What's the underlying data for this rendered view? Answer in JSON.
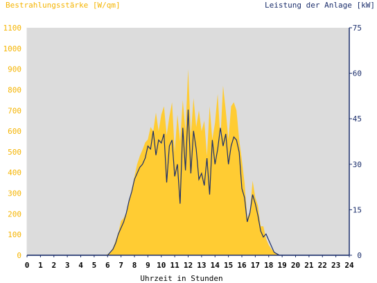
{
  "chart_data": {
    "type": "area",
    "title_left": "Bestrahlungsstärke [W/qm]",
    "title_right": "Leistung der Anlage [kW]",
    "xlabel": "Uhrzeit in Stunden",
    "grid": false,
    "x_ticks": [
      "0",
      "1",
      "2",
      "3",
      "4",
      "5",
      "6",
      "7",
      "8",
      "9",
      "10",
      "11",
      "12",
      "13",
      "14",
      "15",
      "16",
      "17",
      "18",
      "19",
      "20",
      "21",
      "22",
      "23",
      "24"
    ],
    "y_left_ticks": [
      "0",
      "100",
      "200",
      "300",
      "400",
      "500",
      "600",
      "700",
      "800",
      "900",
      "1000",
      "1100"
    ],
    "y_right_ticks": [
      "0",
      "15",
      "30",
      "45",
      "60",
      "75"
    ],
    "x_range": [
      0,
      24
    ],
    "y_left_range": [
      0,
      1100
    ],
    "y_right_range": [
      0,
      75
    ],
    "colors": {
      "plot_background": "#dcdcdc",
      "irradiance_fill": "#ffcc33",
      "power_line": "#1a2d6b",
      "left_axis_text": "#f5b400",
      "right_axis": "#1a2d6b"
    },
    "series": [
      {
        "axis": "left",
        "kind": "area",
        "x": [
          0,
          5.8,
          6.0,
          6.2,
          6.4,
          6.6,
          6.8,
          7.0,
          7.2,
          7.4,
          7.6,
          7.8,
          8.0,
          8.2,
          8.4,
          8.6,
          8.8,
          9.0,
          9.2,
          9.4,
          9.6,
          9.8,
          10.0,
          10.2,
          10.4,
          10.6,
          10.8,
          11.0,
          11.2,
          11.4,
          11.6,
          11.8,
          12.0,
          12.2,
          12.4,
          12.6,
          12.8,
          13.0,
          13.2,
          13.4,
          13.6,
          13.8,
          14.0,
          14.2,
          14.4,
          14.6,
          14.8,
          15.0,
          15.2,
          15.4,
          15.6,
          15.8,
          16.0,
          16.2,
          16.4,
          16.6,
          16.8,
          17.0,
          17.2,
          17.4,
          17.6,
          17.8,
          18.0,
          18.2,
          18.4,
          18.6,
          18.8,
          19.0,
          24
        ],
        "y": [
          0,
          0,
          5,
          15,
          35,
          70,
          110,
          165,
          180,
          205,
          260,
          320,
          380,
          440,
          480,
          510,
          545,
          560,
          620,
          600,
          690,
          600,
          680,
          720,
          580,
          670,
          740,
          500,
          680,
          550,
          750,
          600,
          900,
          580,
          760,
          620,
          700,
          600,
          650,
          480,
          720,
          560,
          640,
          780,
          560,
          820,
          700,
          560,
          720,
          740,
          700,
          560,
          460,
          350,
          180,
          210,
          360,
          280,
          240,
          140,
          140,
          80,
          50,
          30,
          15,
          5,
          0,
          0,
          0
        ]
      },
      {
        "axis": "right",
        "kind": "line",
        "x": [
          0,
          6.0,
          6.2,
          6.4,
          6.6,
          6.8,
          7.0,
          7.2,
          7.4,
          7.6,
          7.8,
          8.0,
          8.2,
          8.4,
          8.6,
          8.8,
          9.0,
          9.2,
          9.4,
          9.6,
          9.8,
          10.0,
          10.2,
          10.4,
          10.6,
          10.8,
          11.0,
          11.2,
          11.4,
          11.6,
          11.8,
          12.0,
          12.2,
          12.4,
          12.6,
          12.8,
          13.0,
          13.2,
          13.4,
          13.6,
          13.8,
          14.0,
          14.2,
          14.4,
          14.6,
          14.8,
          15.0,
          15.2,
          15.4,
          15.6,
          15.8,
          16.0,
          16.2,
          16.4,
          16.6,
          16.8,
          17.0,
          17.2,
          17.4,
          17.6,
          17.8,
          18.0,
          18.2,
          18.4,
          18.6,
          18.8,
          19.0,
          24
        ],
        "y": [
          0,
          0,
          1,
          2,
          4,
          7,
          9,
          11,
          14,
          18,
          21,
          25,
          27,
          29,
          30,
          32,
          36,
          35,
          41,
          33,
          38,
          37,
          40,
          24,
          36,
          38,
          26,
          30,
          17,
          42,
          28,
          48,
          27,
          41,
          35,
          25,
          27,
          23,
          32,
          20,
          38,
          30,
          35,
          42,
          36,
          40,
          30,
          36,
          39,
          38,
          34,
          22,
          19,
          11,
          14,
          20,
          17,
          13,
          8,
          6,
          7,
          5,
          3,
          1,
          0.5,
          0,
          0,
          0
        ]
      }
    ]
  }
}
